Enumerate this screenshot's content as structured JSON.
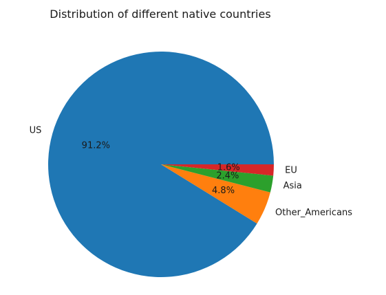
{
  "chart_data": {
    "type": "pie",
    "title": "Distribution of different native countries",
    "slices": [
      {
        "label": "US",
        "value": 91.2,
        "pct_text": "91.2%",
        "color": "#1f77b4"
      },
      {
        "label": "Other_Americans",
        "value": 4.8,
        "pct_text": "4.8%",
        "color": "#ff7f0e"
      },
      {
        "label": "Asia",
        "value": 2.4,
        "pct_text": "2.4%",
        "color": "#2ca02c"
      },
      {
        "label": "EU",
        "value": 1.6,
        "pct_text": "1.6%",
        "color": "#d62728"
      }
    ],
    "start_angle_deg": 0,
    "direction": "counterclockwise"
  }
}
